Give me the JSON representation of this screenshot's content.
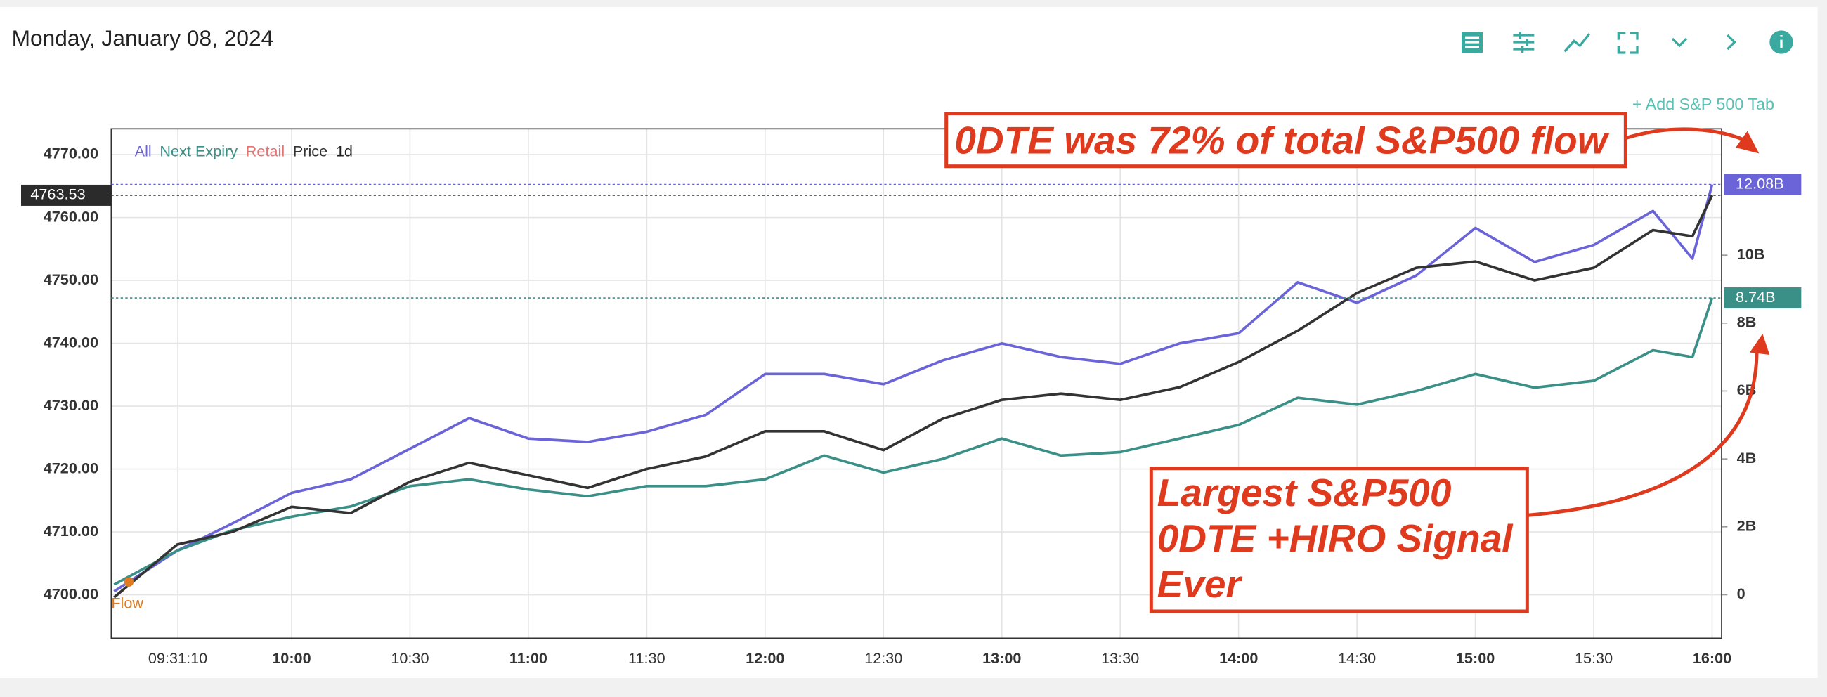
{
  "header": {
    "date": "Monday, January 08, 2024",
    "add_tab": "+ Add S&P 500 Tab"
  },
  "chart_data": {
    "type": "line",
    "x": [
      555,
      571,
      585,
      600,
      615,
      630,
      645,
      660,
      675,
      690,
      705,
      720,
      735,
      750,
      765,
      780,
      795,
      810,
      825,
      840,
      855,
      870,
      885,
      900,
      915,
      930,
      945,
      955,
      960
    ],
    "xlim": [
      554.3,
      962.4
    ],
    "xticks": [
      {
        "value": 571.17,
        "label": "09:31:10"
      },
      {
        "value": 600,
        "label": "10:00"
      },
      {
        "value": 630,
        "label": "10:30"
      },
      {
        "value": 660,
        "label": "11:00"
      },
      {
        "value": 690,
        "label": "11:30"
      },
      {
        "value": 720,
        "label": "12:00"
      },
      {
        "value": 750,
        "label": "12:30"
      },
      {
        "value": 780,
        "label": "13:00"
      },
      {
        "value": 810,
        "label": "13:30"
      },
      {
        "value": 840,
        "label": "14:00"
      },
      {
        "value": 870,
        "label": "14:30"
      },
      {
        "value": 900,
        "label": "15:00"
      },
      {
        "value": 930,
        "label": "15:30"
      },
      {
        "value": 960,
        "label": "16:00"
      }
    ],
    "ylim": [
      4693.1,
      4774.1
    ],
    "yticks": [
      {
        "value": 4700,
        "label": "4700.00"
      },
      {
        "value": 4710,
        "label": "4710.00"
      },
      {
        "value": 4720,
        "label": "4720.00"
      },
      {
        "value": 4730,
        "label": "4730.00"
      },
      {
        "value": 4740,
        "label": "4740.00"
      },
      {
        "value": 4750,
        "label": "4750.00"
      },
      {
        "value": 4760,
        "label": "4760.00"
      },
      {
        "value": 4770,
        "label": "4770.00"
      }
    ],
    "y2lim": [
      -1.28,
      13.72
    ],
    "y2ticks": [
      0,
      {
        "value": 2,
        "label": "2B"
      },
      {
        "value": 4,
        "label": "4B"
      },
      {
        "value": 6,
        "label": "6B"
      },
      {
        "value": 8,
        "label": "8B"
      },
      {
        "value": 10,
        "label": "10B"
      }
    ],
    "grid": true,
    "series": [
      {
        "name": "All",
        "color": "#6a64d8",
        "axis": "y2",
        "current_value": 12.08,
        "current_label": "12.08B",
        "values": [
          0.1,
          1.3,
          2.1,
          3.0,
          3.4,
          4.3,
          5.2,
          4.6,
          4.5,
          4.8,
          5.3,
          6.5,
          6.5,
          6.2,
          6.9,
          7.4,
          7.0,
          6.8,
          7.4,
          7.7,
          9.2,
          8.6,
          9.4,
          10.8,
          9.8,
          10.3,
          11.3,
          9.9,
          12.08
        ]
      },
      {
        "name": "Next Expiry",
        "color": "#3a8f86",
        "axis": "y2",
        "current_value": 8.74,
        "current_label": "8.74B",
        "values": [
          0.3,
          1.3,
          1.9,
          2.3,
          2.6,
          3.2,
          3.4,
          3.1,
          2.9,
          3.2,
          3.2,
          3.4,
          4.1,
          3.6,
          4.0,
          4.6,
          4.1,
          4.2,
          4.6,
          5.0,
          5.8,
          5.6,
          6.0,
          6.5,
          6.1,
          6.3,
          7.2,
          7.0,
          8.74
        ]
      },
      {
        "name": "Price",
        "color": "#333333",
        "current_value": 4763.53,
        "values": [
          4699.6,
          4708,
          4710,
          4714,
          4713,
          4718,
          4721,
          4719,
          4717,
          4720,
          4722,
          4726,
          4726,
          4723,
          4728,
          4731,
          4732,
          4731,
          4733,
          4737,
          4742,
          4748,
          4752,
          4753,
          4750,
          4752,
          4758,
          4757,
          4763.53
        ]
      }
    ],
    "extra_legend": [
      {
        "name": "Retail",
        "color": "#e57373"
      },
      {
        "name": "1d",
        "color": "#222222"
      }
    ],
    "flow_label": "Flow",
    "annotations": [
      "0DTE was 72% of total S&P500 flow",
      [
        "Largest S&P500",
        "0DTE +HIRO Signal",
        "Ever"
      ]
    ]
  }
}
